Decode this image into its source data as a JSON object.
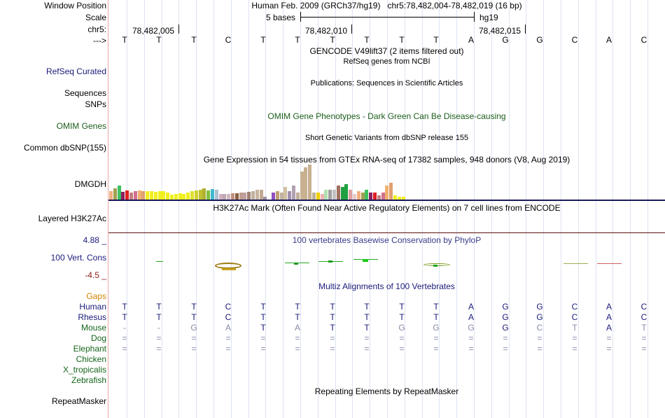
{
  "header": {
    "assembly": "Human Feb. 2009 (GRCh37/hg19)",
    "position": "chr5:78,482,004-78,482,019 (16 bp)",
    "scale": "5 bases",
    "scale_db": "hg19",
    "ticks": [
      "78,482,005",
      "78,482,010",
      "78,482,015"
    ],
    "strand_label": "--->",
    "chrom_label": "chr5:"
  },
  "labels": {
    "window_position": "Window Position",
    "scale": "Scale",
    "chr": "chr5:",
    "strand": "--->",
    "refseq": "RefSeq Curated",
    "sequences": "Sequences",
    "snps": "SNPs",
    "omim": "OMIM Genes",
    "common_dbsnp": "Common dbSNP(155)",
    "gene": "DMGDH",
    "h3k27ac": "Layered H3K27Ac",
    "phylop_max": "4.88 _",
    "vert_cons": "100 Vert. Cons",
    "phylop_min": "-4.5 _",
    "gaps": "Gaps",
    "repeatmasker": "RepeatMasker"
  },
  "sequence": [
    "T",
    "T",
    "T",
    "C",
    "T",
    "T",
    "T",
    "T",
    "T",
    "T",
    "A",
    "G",
    "G",
    "C",
    "A",
    "C"
  ],
  "tracks": {
    "gencode": "GENCODE V49lift37 (2 items filtered out)",
    "refseq": "RefSeq genes from NCBI",
    "publications": "Publications: Sequences in Scientific Articles",
    "omim_pheno": "OMIM Gene Phenotypes - Dark Green Can Be Disease-causing",
    "dbsnp": "Short Genetic Variants from dbSNP release 155",
    "gtex": "Gene Expression in 54 tissues from GTEx RNA-seq of 17382 samples, 948 donors (V8, Aug 2019)",
    "h3k27ac": "H3K27Ac Mark (Often Found Near Active Regulatory Elements) on 7 cell lines from ENCODE",
    "phylop": "100 vertebrates Basewise Conservation by PhyloP",
    "multiz": "Multiz Alignments of 100 Vertebrates",
    "repeatmasker": "Repeating Elements by RepeatMasker"
  },
  "species": [
    {
      "name": "Human",
      "bases": [
        "T",
        "T",
        "T",
        "C",
        "T",
        "T",
        "T",
        "T",
        "T",
        "T",
        "A",
        "G",
        "G",
        "C",
        "A",
        "C"
      ]
    },
    {
      "name": "Rhesus",
      "bases": [
        "T",
        "T",
        "T",
        "C",
        "T",
        "T",
        "T",
        "T",
        "T",
        "T",
        "A",
        "G",
        "G",
        "C",
        "A",
        "C"
      ]
    },
    {
      "name": "Mouse",
      "bases": [
        "-",
        "-",
        "G",
        "A",
        "T",
        "A",
        "T",
        "T",
        "G",
        "G",
        "G",
        "G",
        "C",
        "T",
        "A",
        "T"
      ]
    },
    {
      "name": "Dog",
      "bases": [
        "=",
        "=",
        "=",
        "=",
        "=",
        "=",
        "=",
        "=",
        "=",
        "=",
        "=",
        "=",
        "=",
        "=",
        "=",
        "="
      ]
    },
    {
      "name": "Elephant",
      "bases": [
        "=",
        "=",
        "=",
        "=",
        "=",
        "=",
        "=",
        "=",
        "=",
        "=",
        "=",
        "=",
        "=",
        "=",
        "=",
        "="
      ]
    },
    {
      "name": "Chicken",
      "bases": []
    },
    {
      "name": "X_tropicalis",
      "bases": []
    },
    {
      "name": "Zebrafish",
      "bases": []
    }
  ],
  "gtex_values": [
    12,
    16,
    20,
    11,
    13,
    10,
    12,
    13,
    12,
    12,
    12,
    11,
    12,
    12,
    10,
    7,
    8,
    9,
    8,
    10,
    12,
    13,
    14,
    16,
    13,
    15,
    14,
    8,
    8,
    8,
    9,
    9,
    10,
    10,
    11,
    12,
    14,
    14,
    4,
    0,
    10,
    12,
    10,
    18,
    12,
    20,
    10,
    40,
    46,
    50,
    10,
    10,
    8,
    14,
    14,
    14,
    20,
    18,
    22,
    14,
    8,
    12,
    10,
    14,
    10,
    10,
    6,
    10,
    20,
    24,
    6,
    4,
    4,
    0,
    0,
    0
  ],
  "colors": {
    "label_blue": "#1a1a7a",
    "omim_green": "#1c5e1c",
    "gaps_orange": "#cc8800",
    "species_green": "#14661a",
    "phylop_max": "#1a1a7a",
    "phylop_min": "#8b1a1a",
    "mismatch_gray": "#8a8aa8"
  }
}
